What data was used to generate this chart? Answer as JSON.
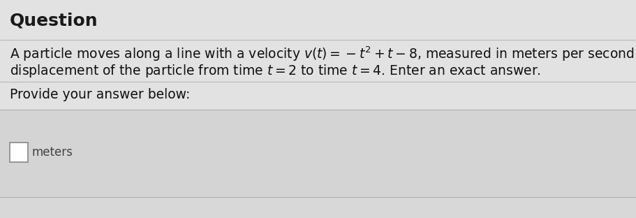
{
  "title": "Question",
  "prompt": "Provide your answer below:",
  "answer_label": "meters",
  "bg_color": "#dcdcdc",
  "upper_bg": "#e8e8e8",
  "answer_area_bg": "#e4e4e4",
  "divider_color": "#c0c0c0",
  "title_color": "#1a1a1a",
  "text_color": "#111111",
  "font_size_title": 18,
  "font_size_body": 13.5,
  "font_size_prompt": 13.5,
  "font_size_answer": 12
}
